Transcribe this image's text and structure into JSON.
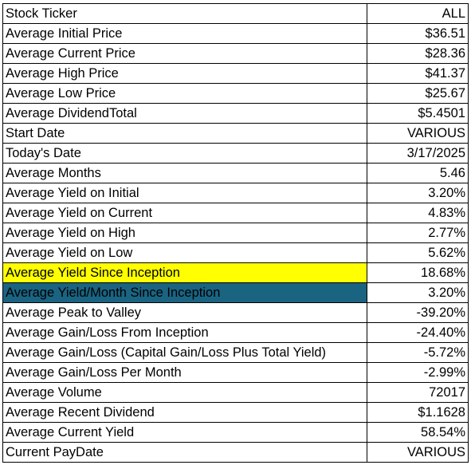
{
  "highlight_colors": {
    "yellow": "#ffff00",
    "teal": "#1a6482"
  },
  "rows": [
    {
      "label": "Stock Ticker",
      "value": "ALL"
    },
    {
      "label": "Average Initial Price",
      "value": "$36.51"
    },
    {
      "label": "Average Current Price",
      "value": "$28.36"
    },
    {
      "label": "Average High Price",
      "value": "$41.37"
    },
    {
      "label": "Average Low Price",
      "value": "$25.67"
    },
    {
      "label": "Average DividendTotal",
      "value": "$5.4501"
    },
    {
      "label": "Start Date",
      "value": "VARIOUS"
    },
    {
      "label": "Today's Date",
      "value": "3/17/2025"
    },
    {
      "label": "Average Months",
      "value": "5.46"
    },
    {
      "label": "Average Yield on Initial",
      "value": "3.20%"
    },
    {
      "label": "Average Yield on Current",
      "value": "4.83%"
    },
    {
      "label": "Average Yield on High",
      "value": "2.77%"
    },
    {
      "label": "Average Yield on Low",
      "value": "5.62%"
    },
    {
      "label": "Average Yield Since Inception",
      "value": "18.68%",
      "highlight": "yellow"
    },
    {
      "label": "Average Yield/Month Since Inception",
      "value": "3.20%",
      "highlight": "teal"
    },
    {
      "label": "Average Peak to Valley",
      "value": "-39.20%"
    },
    {
      "label": "Average Gain/Loss From Inception",
      "value": "-24.40%"
    },
    {
      "label": "Average Gain/Loss (Capital Gain/Loss Plus Total Yield)",
      "value": "-5.72%"
    },
    {
      "label": "Average Gain/Loss Per Month",
      "value": "-2.99%"
    },
    {
      "label": "Average Volume",
      "value": "72017"
    },
    {
      "label": "Average Recent Dividend",
      "value": "$1.1628"
    },
    {
      "label": "Average Current Yield",
      "value": "58.54%"
    },
    {
      "label": "Current PayDate",
      "value": "VARIOUS"
    }
  ]
}
